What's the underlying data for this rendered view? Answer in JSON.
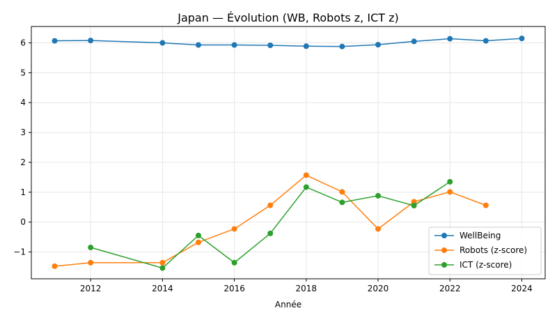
{
  "chart_data": {
    "type": "line",
    "title": "Japan — Évolution (WB, Robots z, ICT z)",
    "xlabel": "Année",
    "ylabel": "",
    "xlim": [
      2010.35,
      2024.65
    ],
    "ylim": [
      -1.9,
      6.55
    ],
    "xticks": [
      2012,
      2014,
      2016,
      2018,
      2020,
      2022,
      2024
    ],
    "yticks": [
      -1,
      0,
      1,
      2,
      3,
      4,
      5,
      6
    ],
    "ytick_labels": [
      "−1",
      "0",
      "1",
      "2",
      "3",
      "4",
      "5",
      "6"
    ],
    "grid": true,
    "legend_position": "lower-right",
    "series": [
      {
        "name": "WellBeing",
        "color": "#1f77b4",
        "points": [
          [
            2011,
            6.07
          ],
          [
            2012,
            6.08
          ],
          [
            2014,
            6.0
          ],
          [
            2015,
            5.93
          ],
          [
            2016,
            5.93
          ],
          [
            2017,
            5.92
          ],
          [
            2018,
            5.89
          ],
          [
            2019,
            5.88
          ],
          [
            2020,
            5.94
          ],
          [
            2021,
            6.05
          ],
          [
            2022,
            6.14
          ],
          [
            2023,
            6.07
          ],
          [
            2024,
            6.15
          ]
        ]
      },
      {
        "name": "Robots (z-score)",
        "color": "#ff7f0e",
        "points": [
          [
            2011,
            -1.48
          ],
          [
            2012,
            -1.36
          ],
          [
            2014,
            -1.36
          ],
          [
            2015,
            -0.68
          ],
          [
            2016,
            -0.23
          ],
          [
            2017,
            0.56
          ],
          [
            2018,
            1.57
          ],
          [
            2019,
            1.01
          ],
          [
            2020,
            -0.23
          ],
          [
            2021,
            0.68
          ],
          [
            2022,
            1.01
          ],
          [
            2023,
            0.56
          ]
        ]
      },
      {
        "name": "ICT (z-score)",
        "color": "#2ca02c",
        "points": [
          [
            2012,
            -0.85
          ],
          [
            2014,
            -1.54
          ],
          [
            2015,
            -0.45
          ],
          [
            2016,
            -1.36
          ],
          [
            2017,
            -0.38
          ],
          [
            2018,
            1.17
          ],
          [
            2019,
            0.66
          ],
          [
            2020,
            0.88
          ],
          [
            2021,
            0.55
          ],
          [
            2022,
            1.35
          ]
        ]
      }
    ]
  }
}
